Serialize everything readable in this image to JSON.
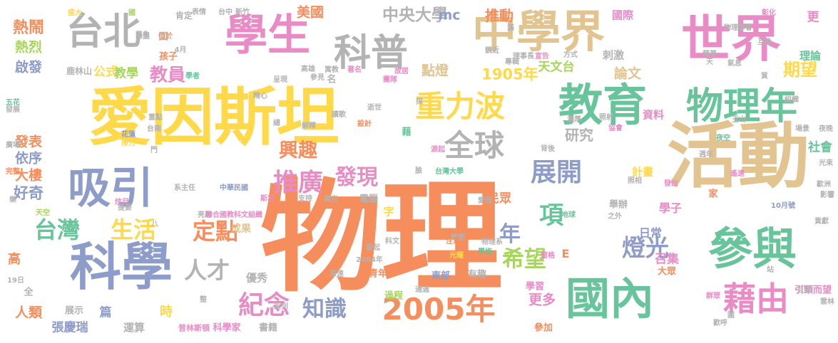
{
  "palette": {
    "orange": "#f58d5d",
    "green": "#67c49b",
    "blue": "#8d9cc8",
    "pink": "#e98bc5",
    "lime": "#a7d65b",
    "yellow": "#ffd949",
    "tan": "#e2c491",
    "gray": "#b3b3b3"
  },
  "words": [
    {
      "text": "物理",
      "color": "orange"
    },
    {
      "text": "愛因斯坦",
      "color": "yellow"
    },
    {
      "text": "活動",
      "color": "tan"
    },
    {
      "text": "世界",
      "color": "pink"
    },
    {
      "text": "中學界",
      "color": "tan"
    },
    {
      "text": "學生",
      "color": "pink"
    },
    {
      "text": "科普",
      "color": "gray"
    },
    {
      "text": "台北",
      "color": "gray"
    },
    {
      "text": "教育",
      "color": "green"
    },
    {
      "text": "物理年",
      "color": "green"
    },
    {
      "text": "科學",
      "color": "blue"
    },
    {
      "text": "參與",
      "color": "green"
    },
    {
      "text": "國內",
      "color": "green"
    },
    {
      "text": "重力波",
      "color": "yellow"
    },
    {
      "text": "全球",
      "color": "gray"
    },
    {
      "text": "吸引",
      "color": "blue"
    },
    {
      "text": "藉由",
      "color": "pink"
    },
    {
      "text": "2005年",
      "color": "orange"
    },
    {
      "text": "推廣",
      "color": "pink"
    },
    {
      "text": "發現",
      "color": "pink"
    },
    {
      "text": "展開",
      "color": "blue"
    },
    {
      "text": "燈光",
      "color": "blue"
    },
    {
      "text": "希望",
      "color": "lime"
    },
    {
      "text": "紀念",
      "color": "pink"
    },
    {
      "text": "知識",
      "color": "blue"
    },
    {
      "text": "台灣",
      "color": "green"
    },
    {
      "text": "生活",
      "color": "yellow"
    },
    {
      "text": "定點",
      "color": "orange"
    },
    {
      "text": "興趣",
      "color": "orange"
    },
    {
      "text": "項",
      "color": "green"
    },
    {
      "text": "年",
      "color": "blue"
    },
    {
      "text": "人才",
      "color": "gray"
    },
    {
      "text": "期望",
      "color": "yellow"
    },
    {
      "text": "教員",
      "color": "pink"
    },
    {
      "text": "中央大學",
      "color": "gray"
    },
    {
      "text": "1905年",
      "color": "yellow"
    },
    {
      "text": "點燈",
      "color": "tan"
    },
    {
      "text": "研究",
      "color": "gray"
    },
    {
      "text": "美國",
      "color": "orange"
    },
    {
      "text": "mc",
      "color": "blue"
    },
    {
      "text": "推動",
      "color": "orange"
    },
    {
      "text": "熱鬧",
      "color": "orange"
    },
    {
      "text": "熱烈",
      "color": "lime"
    },
    {
      "text": "啟發",
      "color": "blue"
    },
    {
      "text": "公式",
      "color": "yellow"
    },
    {
      "text": "教學",
      "color": "lime"
    },
    {
      "text": "好奇",
      "color": "blue"
    },
    {
      "text": "大樓",
      "color": "orange"
    },
    {
      "text": "依序",
      "color": "blue"
    },
    {
      "text": "發表",
      "color": "orange"
    },
    {
      "text": "人類",
      "color": "orange"
    },
    {
      "text": "更多",
      "color": "pink"
    },
    {
      "text": "論文",
      "color": "tan"
    },
    {
      "text": "理論",
      "color": "green"
    },
    {
      "text": "天文台",
      "color": "lime"
    },
    {
      "text": "資料",
      "color": "pink"
    },
    {
      "text": "計畫",
      "color": "yellow"
    },
    {
      "text": "社會",
      "color": "green"
    },
    {
      "text": "民眾",
      "color": "orange"
    },
    {
      "text": "學子",
      "color": "pink"
    },
    {
      "text": "更",
      "color": "pink"
    },
    {
      "text": "刺激",
      "color": "gray"
    },
    {
      "text": "國際",
      "color": "pink"
    },
    {
      "text": "張慶瑞",
      "color": "blue"
    },
    {
      "text": "運算",
      "color": "gray"
    },
    {
      "text": "科學家",
      "color": "pink"
    },
    {
      "text": "書籍",
      "color": "gray"
    },
    {
      "text": "參加",
      "color": "orange"
    },
    {
      "text": "學習",
      "color": "pink"
    },
    {
      "text": "過程",
      "color": "lime"
    },
    {
      "text": "青年",
      "color": "orange"
    },
    {
      "text": "優秀",
      "color": "gray"
    },
    {
      "text": "大眾",
      "color": "orange"
    },
    {
      "text": "召集",
      "color": "pink"
    },
    {
      "text": "日常",
      "color": "blue"
    },
    {
      "text": "舉辦",
      "color": "gray"
    },
    {
      "text": "電腦",
      "color": "gray"
    },
    {
      "text": "成果",
      "color": "tan"
    },
    {
      "text": "時",
      "color": "yellow"
    },
    {
      "text": "篇",
      "color": "blue"
    },
    {
      "text": "展示",
      "color": "gray"
    },
    {
      "text": "高",
      "color": "orange"
    },
    {
      "text": "全",
      "color": "gray"
    },
    {
      "text": "家",
      "color": "orange"
    },
    {
      "text": "字",
      "color": "yellow"
    },
    {
      "text": "E",
      "color": "orange"
    },
    {
      "text": "名",
      "color": "gray"
    },
    {
      "text": "孩子",
      "color": "orange"
    },
    {
      "text": "鹿林山",
      "color": "gray"
    },
    {
      "text": "有趣",
      "color": "gray"
    },
    {
      "text": "東部",
      "color": "blue"
    },
    {
      "text": "普林斯頓",
      "color": "pink"
    },
    {
      "text": "藉",
      "color": "green"
    },
    {
      "text": "肯定",
      "color": "gray"
    },
    {
      "text": "回",
      "color": "gray"
    },
    {
      "text": "國",
      "color": "lime"
    },
    {
      "text": "表情",
      "color": "gray"
    },
    {
      "text": "台中",
      "color": "gray"
    },
    {
      "text": "新竹",
      "color": "gray"
    },
    {
      "text": "滿",
      "color": "gray"
    },
    {
      "text": "彰化",
      "color": "pink"
    },
    {
      "text": "場景",
      "color": "gray"
    },
    {
      "text": "夜晚",
      "color": "gray"
    },
    {
      "text": "光束",
      "color": "gray"
    },
    {
      "text": "歐洲",
      "color": "gray"
    },
    {
      "text": "影響",
      "color": "gray"
    },
    {
      "text": "貢獻",
      "color": "gray"
    },
    {
      "text": "雲林",
      "color": "gray"
    },
    {
      "text": "歡呼",
      "color": "gray"
    },
    {
      "text": "群眾",
      "color": "pink"
    },
    {
      "text": "引頸而望",
      "color": "pink"
    },
    {
      "text": "互動",
      "color": "gray"
    },
    {
      "text": "高空",
      "color": "gray"
    },
    {
      "text": "斯坦",
      "color": "pink"
    },
    {
      "text": "支持",
      "color": "gray"
    },
    {
      "text": "電腦",
      "color": "gray"
    },
    {
      "text": "照相",
      "color": "gray"
    },
    {
      "text": "發出",
      "color": "pink"
    },
    {
      "text": "愛因",
      "color": "gray"
    },
    {
      "text": "台灣大學",
      "color": "green"
    },
    {
      "text": "10月號",
      "color": "blue"
    },
    {
      "text": "地球",
      "color": "green"
    },
    {
      "text": "之外",
      "color": "gray"
    },
    {
      "text": "窗格",
      "color": "pink"
    },
    {
      "text": "學術",
      "color": "green"
    },
    {
      "text": "物理系",
      "color": "gray"
    },
    {
      "text": "注意力",
      "color": "orange"
    },
    {
      "text": "科文",
      "color": "gray"
    },
    {
      "text": "光耀",
      "color": "yellow"
    },
    {
      "text": "發起",
      "color": "gray"
    },
    {
      "text": "2004年",
      "color": "gray"
    },
    {
      "text": "深遠",
      "color": "gray"
    },
    {
      "text": "通過",
      "color": "gray"
    },
    {
      "text": "系列",
      "color": "gray"
    },
    {
      "text": "19日",
      "color": "gray"
    },
    {
      "text": "系主任",
      "color": "gray"
    },
    {
      "text": "中華民國",
      "color": "blue"
    },
    {
      "text": "亮起",
      "color": "gray"
    },
    {
      "text": "聯合國教科文組織",
      "color": "pink"
    },
    {
      "text": "炫目",
      "color": "pink"
    },
    {
      "text": "提要",
      "color": "gray"
    },
    {
      "text": "天空",
      "color": "lime"
    },
    {
      "text": "樂",
      "color": "gray"
    },
    {
      "text": "完整",
      "color": "orange"
    },
    {
      "text": "源起",
      "color": "pink"
    },
    {
      "text": "設計",
      "color": "orange"
    },
    {
      "text": "背後",
      "color": "gray"
    },
    {
      "text": "夜空",
      "color": "green"
    },
    {
      "text": "遙遠",
      "color": "pink"
    },
    {
      "text": "週年",
      "color": "gray"
    },
    {
      "text": "玉山",
      "color": "gray"
    },
    {
      "text": "照射",
      "color": "gray"
    },
    {
      "text": "協會",
      "color": "pink"
    },
    {
      "text": "濃厚",
      "color": "gray"
    },
    {
      "text": "門",
      "color": "gray"
    },
    {
      "text": "台南",
      "color": "gray"
    },
    {
      "text": "重點",
      "color": "gray"
    },
    {
      "text": "花蓮",
      "color": "blue"
    },
    {
      "text": "接力",
      "color": "yellow"
    },
    {
      "text": "廣場",
      "color": "gray"
    },
    {
      "text": "五花",
      "color": "green"
    },
    {
      "text": "發展",
      "color": "gray"
    },
    {
      "text": "學者",
      "color": "green"
    },
    {
      "text": "呈現",
      "color": "gray"
    },
    {
      "text": "參見",
      "color": "gray"
    },
    {
      "text": "讀歌",
      "color": "gray"
    },
    {
      "text": "逝世",
      "color": "gray"
    },
    {
      "text": "團隊",
      "color": "pink"
    },
    {
      "text": "探",
      "color": "gray"
    },
    {
      "text": "鏡近",
      "color": "gray"
    },
    {
      "text": "專輯",
      "color": "gray"
    },
    {
      "text": "理事長",
      "color": "gray"
    },
    {
      "text": "宣告",
      "color": "pink"
    },
    {
      "text": "方式",
      "color": "gray"
    },
    {
      "text": "盛大",
      "color": "yellow"
    },
    {
      "text": "聯盟",
      "color": "gray"
    },
    {
      "text": "萬象",
      "color": "gray"
    },
    {
      "text": "位於",
      "color": "orange"
    },
    {
      "text": "4月",
      "color": "gray"
    },
    {
      "text": "高雄",
      "color": "gray"
    },
    {
      "text": "寓教",
      "color": "gray"
    },
    {
      "text": "著名",
      "color": "pink"
    },
    {
      "text": "故居",
      "color": "pink"
    },
    {
      "text": "天",
      "color": "gray"
    },
    {
      "text": "氣息",
      "color": "gray"
    },
    {
      "text": "藉著",
      "color": "gray"
    },
    {
      "text": "物理學會",
      "color": "gray"
    },
    {
      "text": "互換",
      "color": "gray"
    },
    {
      "text": "質",
      "color": "gray"
    },
    {
      "text": "組織",
      "color": "gray"
    },
    {
      "text": "站",
      "color": "gray"
    },
    {
      "text": "解釋",
      "color": "gray"
    },
    {
      "text": "總",
      "color": "gray"
    },
    {
      "text": "精心",
      "color": "gray"
    },
    {
      "text": "八",
      "color": "gray"
    },
    {
      "text": "整",
      "color": "gray"
    },
    {
      "text": "圍",
      "color": "gray"
    },
    {
      "text": "臉",
      "color": "gray"
    }
  ]
}
